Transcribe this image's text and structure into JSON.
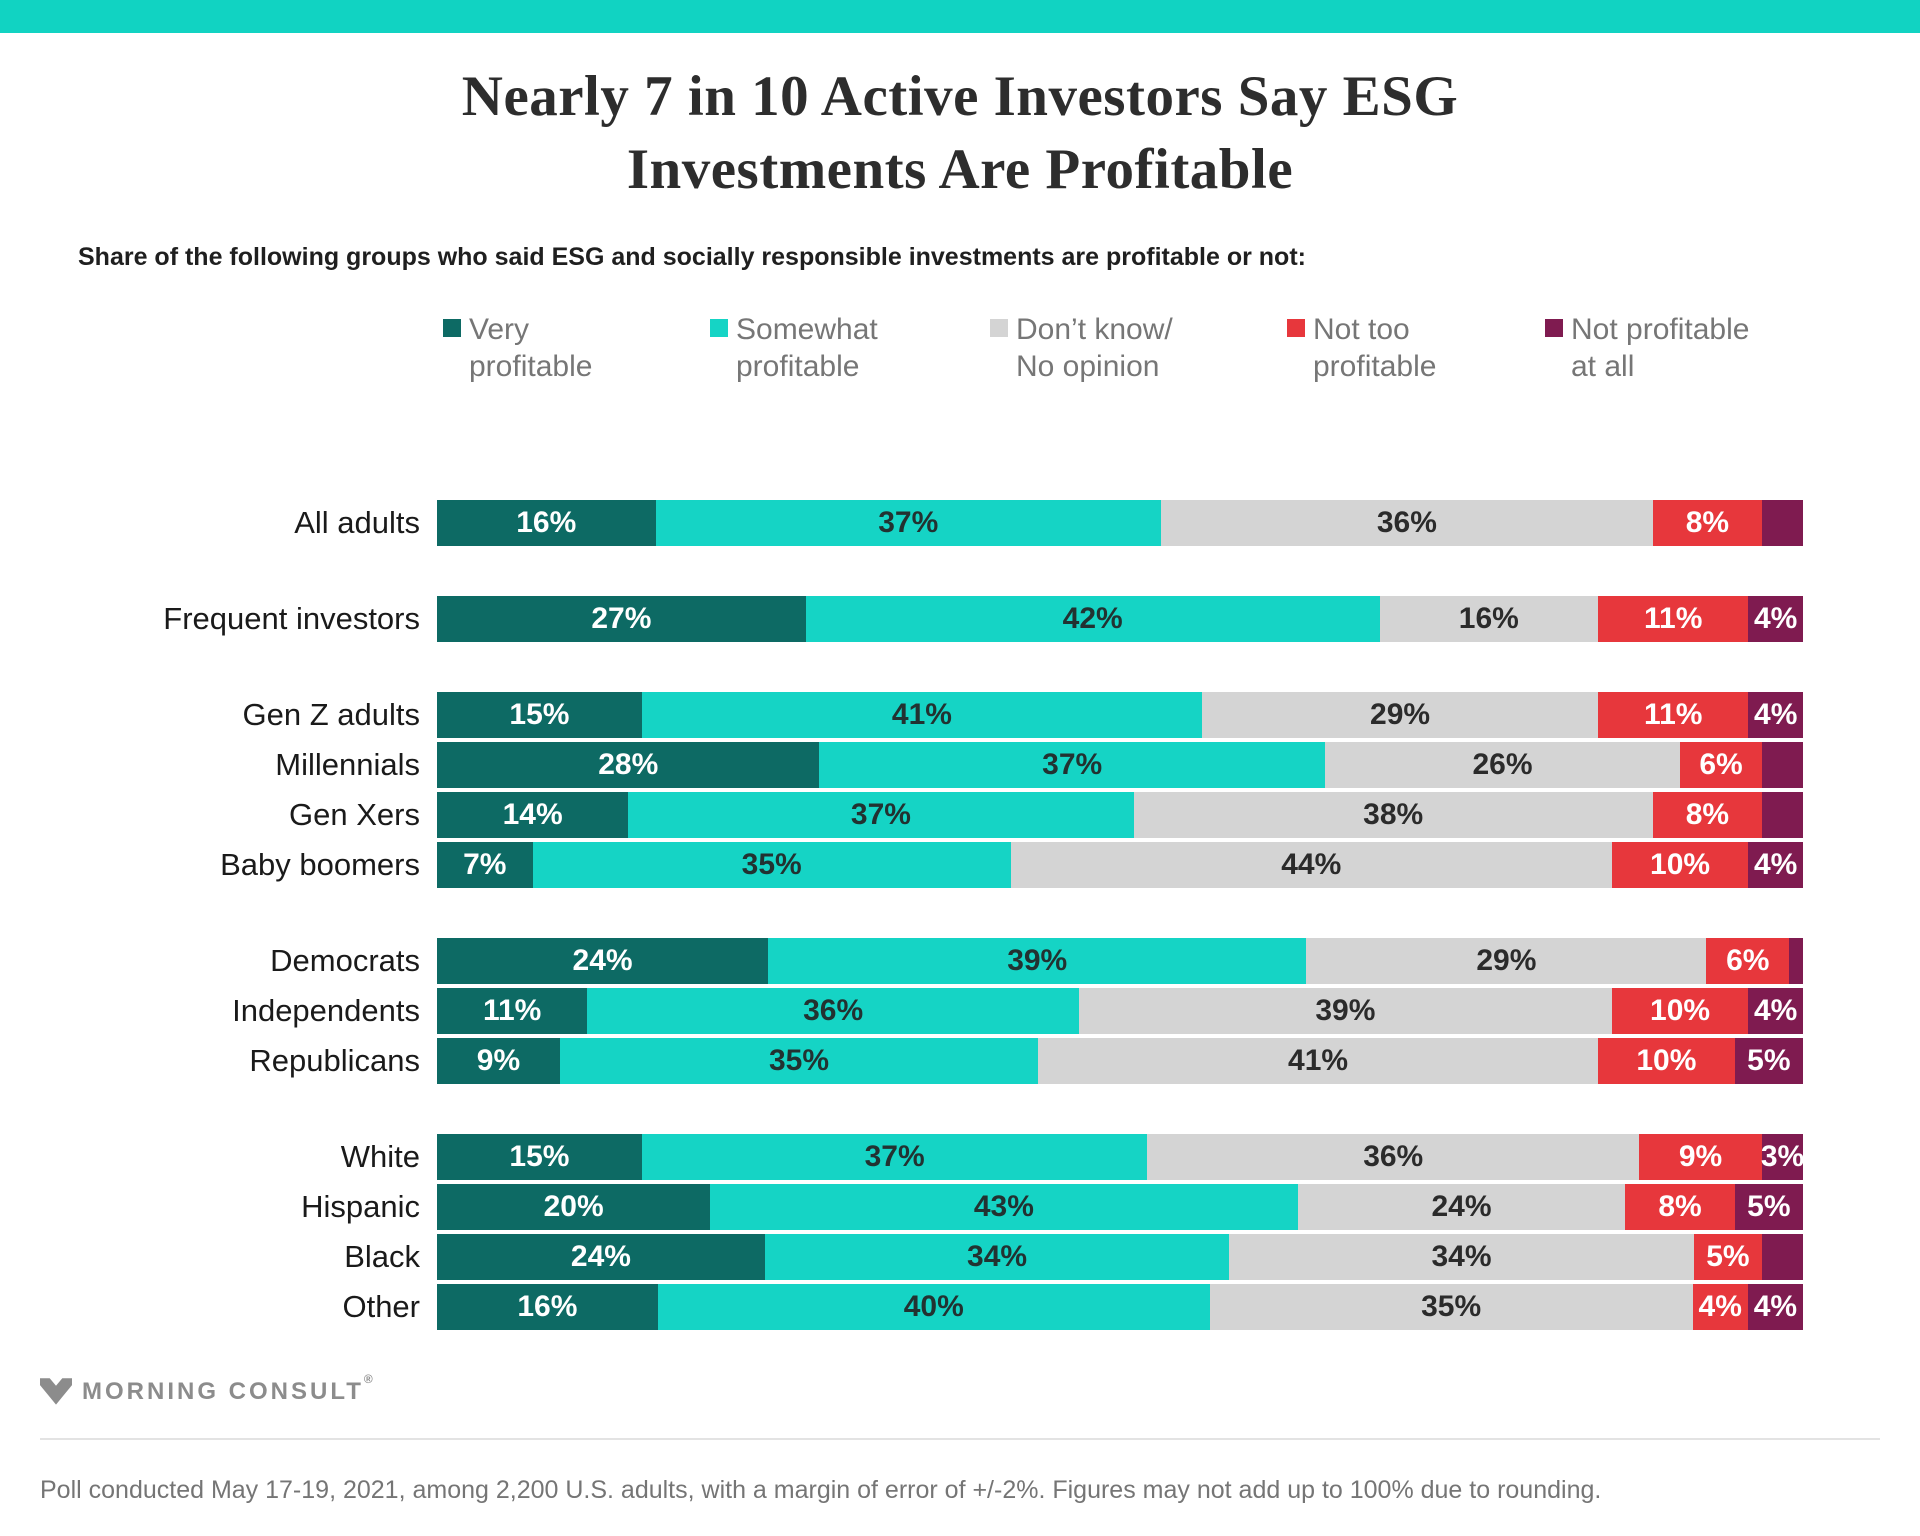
{
  "page": {
    "banner_color": "#11d3c2"
  },
  "chart_data": {
    "type": "bar",
    "stacked": true,
    "orientation": "horizontal",
    "value_unit": "%",
    "axis": "none (percent labels printed inside segments, bars normalized to 100%)",
    "legend_position": "top",
    "title": "Nearly 7 in 10 Active Investors Say ESG Investments Are Profitable",
    "subtitle": "Share of the following groups who said ESG and socially responsible investments are profitable or not:",
    "legend": [
      {
        "label": "Very profitable",
        "line1": "Very",
        "line2": "profitable",
        "color": "#0d6a64",
        "text_color": "#ffffff"
      },
      {
        "label": "Somewhat profitable",
        "line1": "Somewhat",
        "line2": "profitable",
        "color": "#15d4c5",
        "text_color": "#223231"
      },
      {
        "label": "Don’t know/ No opinion",
        "line1": "Don’t know/",
        "line2": "No opinion",
        "color": "#d4d4d4",
        "text_color": "#2b2b2b"
      },
      {
        "label": "Not too profitable",
        "line1": "Not too",
        "line2": "profitable",
        "color": "#e7373c",
        "text_color": "#ffffff"
      },
      {
        "label": "Not profitable at all",
        "line1": "Not profitable",
        "line2": "at all",
        "color": "#7f1b50",
        "text_color": "#ffffff"
      }
    ],
    "groups": [
      {
        "rows": [
          {
            "label": "All adults",
            "values": [
              16,
              37,
              36,
              8,
              3
            ],
            "value_labels": [
              "16%",
              "37%",
              "36%",
              "8%",
              ""
            ]
          }
        ]
      },
      {
        "rows": [
          {
            "label": "Frequent investors",
            "values": [
              27,
              42,
              16,
              11,
              4
            ],
            "value_labels": [
              "27%",
              "42%",
              "16%",
              "11%",
              "4%"
            ]
          }
        ]
      },
      {
        "rows": [
          {
            "label": "Gen Z adults",
            "values": [
              15,
              41,
              29,
              11,
              4
            ],
            "value_labels": [
              "15%",
              "41%",
              "29%",
              "11%",
              "4%"
            ]
          },
          {
            "label": "Millennials",
            "values": [
              28,
              37,
              26,
              6,
              3
            ],
            "value_labels": [
              "28%",
              "37%",
              "26%",
              "6%",
              ""
            ]
          },
          {
            "label": "Gen Xers",
            "values": [
              14,
              37,
              38,
              8,
              3
            ],
            "value_labels": [
              "14%",
              "37%",
              "38%",
              "8%",
              ""
            ]
          },
          {
            "label": "Baby boomers",
            "values": [
              7,
              35,
              44,
              10,
              4
            ],
            "value_labels": [
              "7%",
              "35%",
              "44%",
              "10%",
              "4%"
            ]
          }
        ]
      },
      {
        "rows": [
          {
            "label": "Democrats",
            "values": [
              24,
              39,
              29,
              6,
              1
            ],
            "value_labels": [
              "24%",
              "39%",
              "29%",
              "6%",
              ""
            ]
          },
          {
            "label": "Independents",
            "values": [
              11,
              36,
              39,
              10,
              4
            ],
            "value_labels": [
              "11%",
              "36%",
              "39%",
              "10%",
              "4%"
            ]
          },
          {
            "label": "Republicans",
            "values": [
              9,
              35,
              41,
              10,
              5
            ],
            "value_labels": [
              "9%",
              "35%",
              "41%",
              "10%",
              "5%"
            ]
          }
        ]
      },
      {
        "rows": [
          {
            "label": "White",
            "values": [
              15,
              37,
              36,
              9,
              3
            ],
            "value_labels": [
              "15%",
              "37%",
              "36%",
              "9%",
              "3%"
            ]
          },
          {
            "label": "Hispanic",
            "values": [
              20,
              43,
              24,
              8,
              5
            ],
            "value_labels": [
              "20%",
              "43%",
              "24%",
              "8%",
              "5%"
            ]
          },
          {
            "label": "Black",
            "values": [
              24,
              34,
              34,
              5,
              3
            ],
            "value_labels": [
              "24%",
              "34%",
              "34%",
              "5%",
              ""
            ]
          },
          {
            "label": "Other",
            "values": [
              16,
              40,
              35,
              4,
              4
            ],
            "value_labels": [
              "16%",
              "40%",
              "35%",
              "4%",
              "4%"
            ]
          }
        ]
      }
    ]
  },
  "footer": {
    "logo_text": "MORNING CONSULT",
    "registered_mark": "®",
    "note": "Poll conducted May 17-19, 2021, among 2,200 U.S. adults, with a margin of error of +/-2%. Figures may not add up to 100% due to rounding."
  }
}
